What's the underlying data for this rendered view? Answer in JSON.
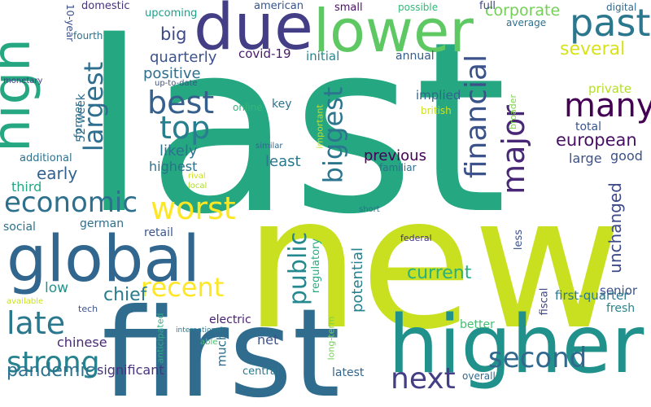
{
  "words": [
    {
      "text": "last",
      "color": "#25a782"
    },
    {
      "text": "new",
      "color": "#c8e020"
    },
    {
      "text": "first",
      "color": "#2f6c8e"
    },
    {
      "text": "higher",
      "color": "#21918c"
    },
    {
      "text": "global",
      "color": "#31668e"
    },
    {
      "text": "due",
      "color": "#433e85"
    },
    {
      "text": "lower",
      "color": "#5ec962"
    },
    {
      "text": "high",
      "color": "#25a782"
    },
    {
      "text": "past",
      "color": "#2a778e"
    },
    {
      "text": "financial",
      "color": "#3b528b"
    },
    {
      "text": "largest",
      "color": "#2e6e8e"
    },
    {
      "text": "biggest",
      "color": "#2b758e"
    },
    {
      "text": "best",
      "color": "#355f8d"
    },
    {
      "text": "top",
      "color": "#287d8e"
    },
    {
      "text": "many",
      "color": "#440154"
    },
    {
      "text": "major",
      "color": "#482777"
    },
    {
      "text": "economic",
      "color": "#2d708e"
    },
    {
      "text": "worst",
      "color": "#fde725"
    },
    {
      "text": "recent",
      "color": "#fde725"
    },
    {
      "text": "public",
      "color": "#23898e"
    },
    {
      "text": "late",
      "color": "#2a788e"
    },
    {
      "text": "strong",
      "color": "#26828e"
    },
    {
      "text": "next",
      "color": "#433e85"
    },
    {
      "text": "second",
      "color": "#31688e"
    },
    {
      "text": "unchanged",
      "color": "#3e4a89"
    },
    {
      "text": "several",
      "color": "#d8e219"
    },
    {
      "text": "european",
      "color": "#471063"
    },
    {
      "text": "corporate",
      "color": "#73d056"
    },
    {
      "text": "current",
      "color": "#2ab07f"
    },
    {
      "text": "potential",
      "color": "#26828e"
    },
    {
      "text": "pandemic",
      "color": "#2c728e"
    },
    {
      "text": "chief",
      "color": "#287c8e"
    },
    {
      "text": "early",
      "color": "#33638d"
    },
    {
      "text": "big",
      "color": "#3e4989"
    },
    {
      "text": "quarterly",
      "color": "#3b528b"
    },
    {
      "text": "positive",
      "color": "#2e6f8e"
    },
    {
      "text": "likely",
      "color": "#2c728e"
    },
    {
      "text": "highest",
      "color": "#2d708e"
    },
    {
      "text": "least",
      "color": "#2a788e"
    },
    {
      "text": "previous",
      "color": "#440154"
    },
    {
      "text": "implied",
      "color": "#32658e"
    },
    {
      "text": "annual",
      "color": "#355e8d"
    },
    {
      "text": "private",
      "color": "#b5de2b"
    },
    {
      "text": "total",
      "color": "#39558c"
    },
    {
      "text": "good",
      "color": "#3b528b"
    },
    {
      "text": "large",
      "color": "#3b528b"
    },
    {
      "text": "third",
      "color": "#22a884"
    },
    {
      "text": "covid-19",
      "color": "#481a6c"
    },
    {
      "text": "initial",
      "color": "#25858e"
    },
    {
      "text": "upcoming",
      "color": "#1fa088"
    },
    {
      "text": "domestic",
      "color": "#46327e"
    },
    {
      "text": "american",
      "color": "#39558c"
    },
    {
      "text": "small",
      "color": "#471164"
    },
    {
      "text": "possible",
      "color": "#35b779"
    },
    {
      "text": "full",
      "color": "#3e4989"
    },
    {
      "text": "digital",
      "color": "#31688e"
    },
    {
      "text": "average",
      "color": "#2d708e"
    },
    {
      "text": "10-year",
      "color": "#3b528b"
    },
    {
      "text": "fourth",
      "color": "#2c738e"
    },
    {
      "text": "52-week",
      "color": "#2e6e8e"
    },
    {
      "text": "former",
      "color": "#2d708e"
    },
    {
      "text": "additional",
      "color": "#2c728e"
    },
    {
      "text": "monetary",
      "color": "#433e85"
    },
    {
      "text": "up-to-date",
      "color": "#3b528b"
    },
    {
      "text": "online",
      "color": "#35b779"
    },
    {
      "text": "key",
      "color": "#2c738e"
    },
    {
      "text": "important",
      "color": "#c2df23"
    },
    {
      "text": "british",
      "color": "#d0e11c"
    },
    {
      "text": "broader",
      "color": "#7fd34e"
    },
    {
      "text": "similar",
      "color": "#31688e"
    },
    {
      "text": "rival",
      "color": "#cae11f"
    },
    {
      "text": "local",
      "color": "#addc30"
    },
    {
      "text": "familiar",
      "color": "#2e6e8e"
    },
    {
      "text": "short",
      "color": "#2c728e"
    },
    {
      "text": "german",
      "color": "#2e6f8e"
    },
    {
      "text": "social",
      "color": "#2c728e"
    },
    {
      "text": "retail",
      "color": "#39568c"
    },
    {
      "text": "regulatory",
      "color": "#25ac82"
    },
    {
      "text": "federal",
      "color": "#46327e"
    },
    {
      "text": "less",
      "color": "#3b528b"
    },
    {
      "text": "low",
      "color": "#21918c"
    },
    {
      "text": "available",
      "color": "#cae11f"
    },
    {
      "text": "tech",
      "color": "#3b528b"
    },
    {
      "text": "international",
      "color": "#2a788e"
    },
    {
      "text": "anticipated",
      "color": "#2ab07f"
    },
    {
      "text": "electric",
      "color": "#481f70"
    },
    {
      "text": "able",
      "color": "#44bf70"
    },
    {
      "text": "much",
      "color": "#2d708e"
    },
    {
      "text": "net",
      "color": "#3b528b"
    },
    {
      "text": "long-term",
      "color": "#75d054"
    },
    {
      "text": "chinese",
      "color": "#482878"
    },
    {
      "text": "significant",
      "color": "#46337f"
    },
    {
      "text": "central",
      "color": "#2a788e"
    },
    {
      "text": "latest",
      "color": "#32658e"
    },
    {
      "text": "overall",
      "color": "#31688e"
    },
    {
      "text": "fiscal",
      "color": "#404688"
    },
    {
      "text": "better",
      "color": "#44bf70"
    },
    {
      "text": "first-quarter",
      "color": "#2a788e"
    },
    {
      "text": "fresh",
      "color": "#25858e"
    },
    {
      "text": "senior",
      "color": "#3b528b"
    }
  ]
}
